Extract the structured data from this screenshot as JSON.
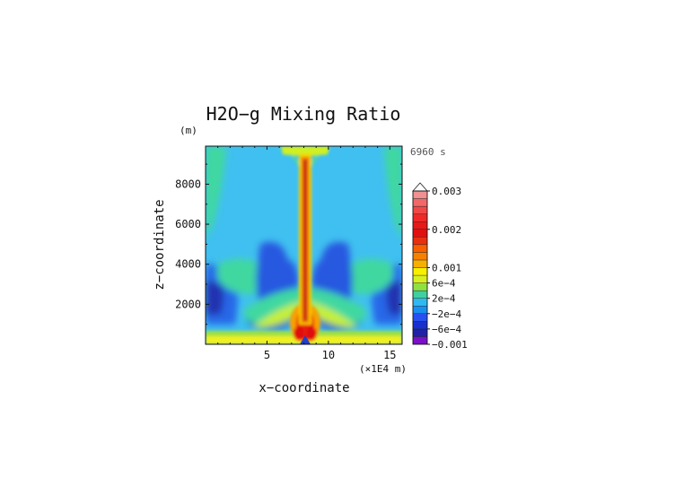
{
  "chart_data": {
    "type": "heatmap",
    "title": "H2O−g Mixing Ratio",
    "time_label": "6960 s",
    "xlabel": "x−coordinate",
    "ylabel": "z−coordinate",
    "x_unit": "(×1E4 m)",
    "y_unit": "(m)",
    "xlim": [
      0,
      16
    ],
    "ylim": [
      0,
      9900
    ],
    "x_ticks": [
      5,
      10,
      15
    ],
    "x_tick_labels": [
      "5",
      "10",
      "15"
    ],
    "y_ticks": [
      2000,
      4000,
      6000,
      8000
    ],
    "y_tick_labels": [
      "2000",
      "4000",
      "6000",
      "8000"
    ],
    "colorbar": {
      "labels": [
        "0.003",
        "0.002",
        "0.001",
        "6e−4",
        "2e−4",
        "−2e−4",
        "−6e−4",
        "−0.001"
      ],
      "label_values": [
        0.003,
        0.002,
        0.001,
        0.0006,
        0.0002,
        -0.0002,
        -0.0006,
        -0.001
      ],
      "levels": [
        -0.001,
        -0.0008,
        -0.0006,
        -0.0004,
        -0.0002,
        0,
        0.0002,
        0.0004,
        0.0006,
        0.0008,
        0.001,
        0.0012,
        0.0014,
        0.0016,
        0.0018,
        0.002,
        0.0022,
        0.0024,
        0.0026,
        0.0028,
        0.003
      ],
      "colors": [
        "#7a10c8",
        "#2020a8",
        "#1830d0",
        "#2850f0",
        "#1890f0",
        "#30b8f0",
        "#40d0a0",
        "#90e040",
        "#d8f020",
        "#f8f000",
        "#f8b000",
        "#f88000",
        "#f86000",
        "#e83010",
        "#e01010",
        "#e81818",
        "#f02828",
        "#f04848",
        "#f06868",
        "#f09090"
      ]
    },
    "background_value": 0.0
  }
}
